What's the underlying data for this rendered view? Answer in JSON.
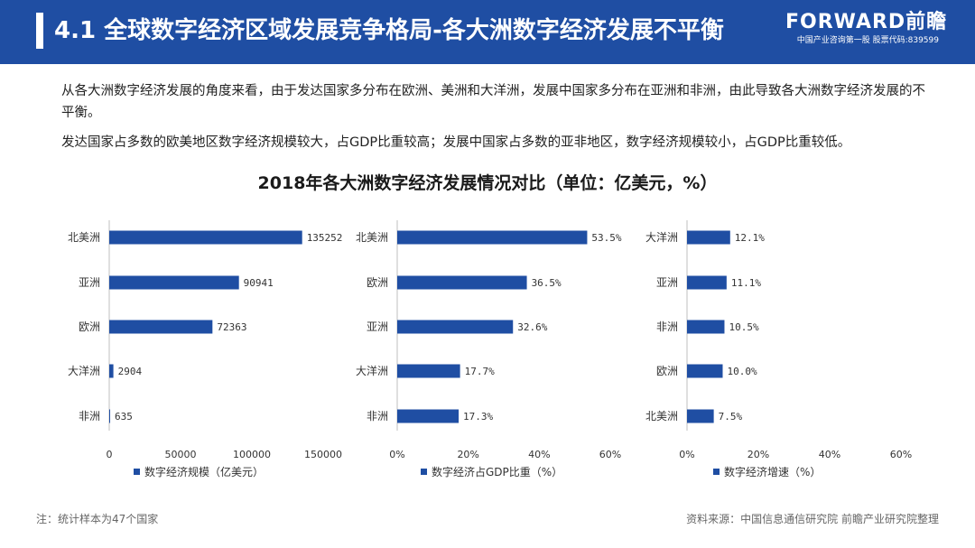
{
  "header": {
    "title": "4.1 全球数字经济区域发展竞争格局-各大洲数字经济发展不平衡",
    "brand": "FORWARD前瞻",
    "tagline": "中国产业咨询第一股 股票代码:839599",
    "background_color": "#1f4ea3"
  },
  "body": {
    "paragraph1": "从各大洲数字经济发展的角度来看，由于发达国家多分布在欧洲、美洲和大洋洲，发展中国家多分布在亚洲和非洲，由此导致各大洲数字经济发展的不平衡。",
    "paragraph2": "发达国家占多数的欧美地区数字经济规模较大，占GDP比重较高；发展中国家占多数的亚非地区，数字经济规模较小，占GDP比重较低。"
  },
  "chart_title": "2018年各大洲数字经济发展情况对比（单位：亿美元，%）",
  "chart_data": [
    {
      "type": "bar",
      "orientation": "horizontal",
      "categories": [
        "北美洲",
        "亚洲",
        "欧洲",
        "大洋洲",
        "非洲"
      ],
      "values": [
        135252,
        90941,
        72363,
        2904,
        635
      ],
      "value_labels": [
        "135252",
        "90941",
        "72363",
        "2904",
        "635"
      ],
      "xlim": [
        0,
        150000
      ],
      "x_ticks": [
        0,
        50000,
        100000,
        150000
      ],
      "x_tick_labels": [
        "0",
        "50000",
        "100000",
        "150000"
      ],
      "legend": "数字经济规模（亿美元）",
      "color": "#1f4ea3"
    },
    {
      "type": "bar",
      "orientation": "horizontal",
      "categories": [
        "北美洲",
        "欧洲",
        "亚洲",
        "大洋洲",
        "非洲"
      ],
      "values": [
        53.5,
        36.5,
        32.6,
        17.7,
        17.3
      ],
      "value_labels": [
        "53.5%",
        "36.5%",
        "32.6%",
        "17.7%",
        "17.3%"
      ],
      "xlim": [
        0,
        60
      ],
      "x_ticks": [
        0,
        20,
        40,
        60
      ],
      "x_tick_labels": [
        "0%",
        "20%",
        "40%",
        "60%"
      ],
      "legend": "数字经济占GDP比重（%）",
      "color": "#1f4ea3"
    },
    {
      "type": "bar",
      "orientation": "horizontal",
      "categories": [
        "大洋洲",
        "亚洲",
        "非洲",
        "欧洲",
        "北美洲"
      ],
      "values": [
        12.1,
        11.1,
        10.5,
        10.0,
        7.5
      ],
      "value_labels": [
        "12.1%",
        "11.1%",
        "10.5%",
        "10.0%",
        "7.5%"
      ],
      "xlim": [
        0,
        60
      ],
      "x_ticks": [
        0,
        20,
        40,
        60
      ],
      "x_tick_labels": [
        "0%",
        "20%",
        "40%",
        "60%"
      ],
      "legend": "数字经济增速（%）",
      "color": "#1f4ea3"
    }
  ],
  "footer": {
    "note": "注：统计样本为47个国家",
    "source": "资料来源：中国信息通信研究院 前瞻产业研究院整理"
  }
}
